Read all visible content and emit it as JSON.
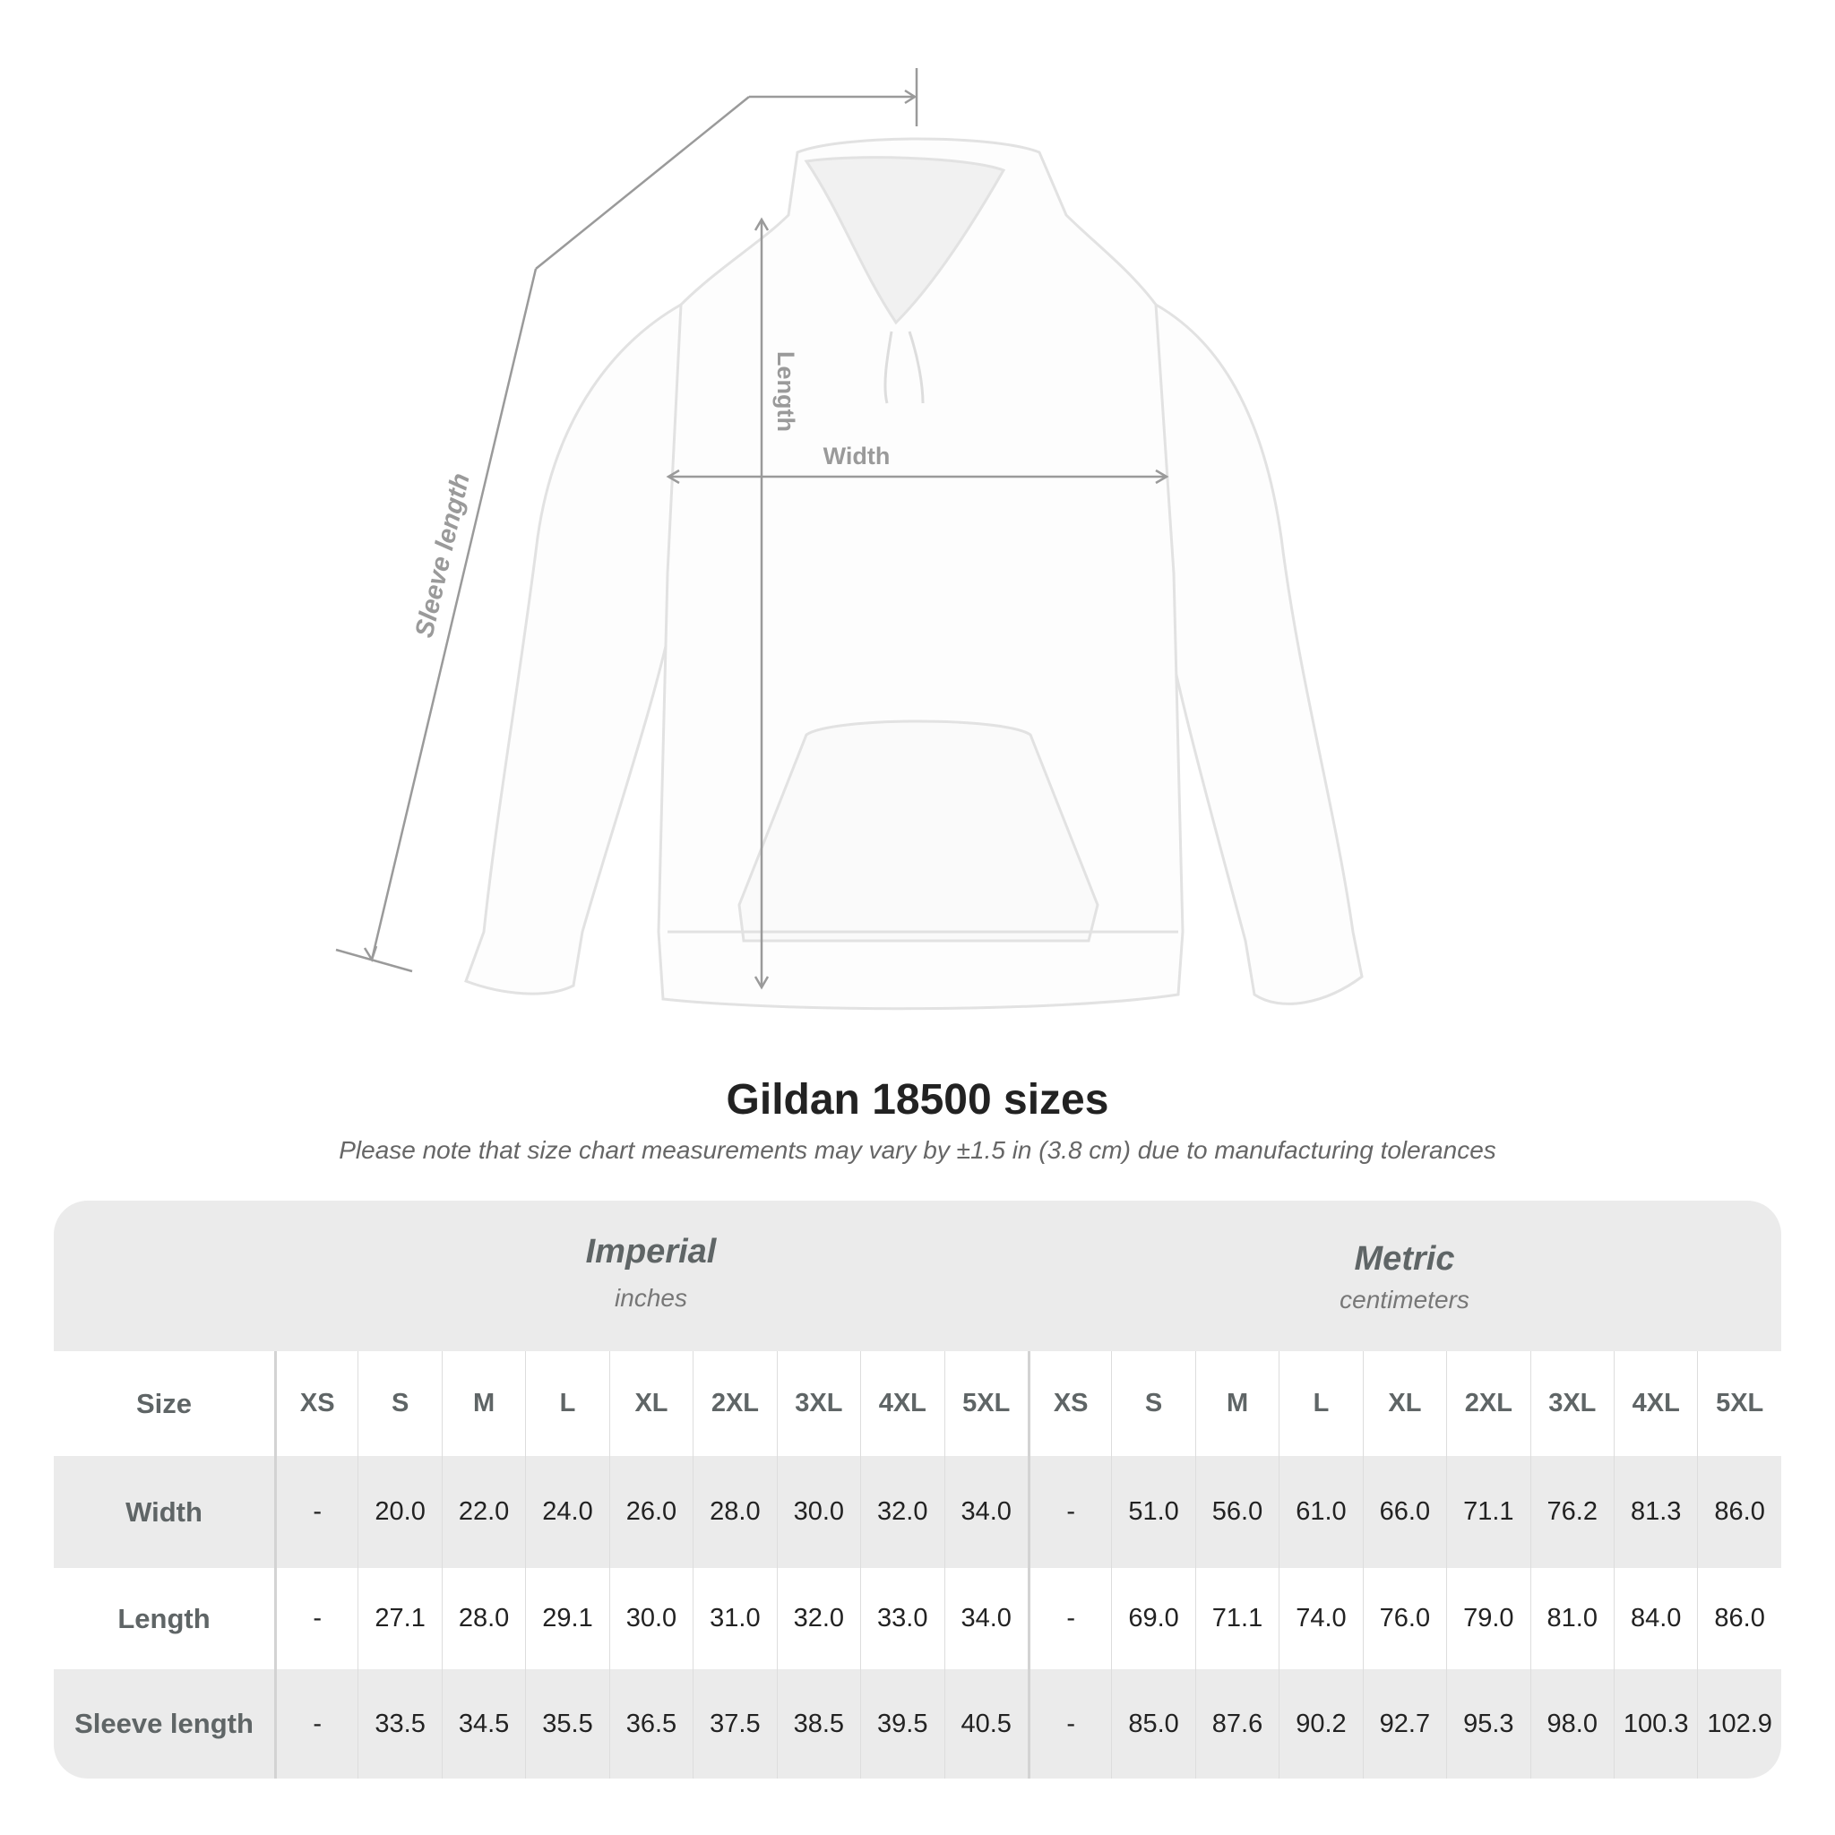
{
  "diagram": {
    "labels": {
      "length": "Length",
      "width": "Width",
      "sleeve": "Sleeve length"
    }
  },
  "header": {
    "title": "Gildan 18500 sizes",
    "subtitle": "Please note that size chart measurements may vary by ±1.5 in (3.8 cm) due to manufacturing tolerances"
  },
  "table": {
    "imperial": {
      "name": "Imperial",
      "unit": "inches"
    },
    "metric": {
      "name": "Metric",
      "unit": "centimeters"
    },
    "size_label": "Size",
    "sizes": [
      "XS",
      "S",
      "M",
      "L",
      "XL",
      "2XL",
      "3XL",
      "4XL",
      "5XL"
    ],
    "rows": [
      {
        "label": "Width",
        "imperial": [
          "-",
          "20.0",
          "22.0",
          "24.0",
          "26.0",
          "28.0",
          "30.0",
          "32.0",
          "34.0"
        ],
        "metric": [
          "-",
          "51.0",
          "56.0",
          "61.0",
          "66.0",
          "71.1",
          "76.2",
          "81.3",
          "86.0"
        ]
      },
      {
        "label": "Length",
        "imperial": [
          "-",
          "27.1",
          "28.0",
          "29.1",
          "30.0",
          "31.0",
          "32.0",
          "33.0",
          "34.0"
        ],
        "metric": [
          "-",
          "69.0",
          "71.1",
          "74.0",
          "76.0",
          "79.0",
          "81.0",
          "84.0",
          "86.0"
        ]
      },
      {
        "label": "Sleeve length",
        "imperial": [
          "-",
          "33.5",
          "34.5",
          "35.5",
          "36.5",
          "37.5",
          "38.5",
          "39.5",
          "40.5"
        ],
        "metric": [
          "-",
          "85.0",
          "87.6",
          "90.2",
          "92.7",
          "95.3",
          "98.0",
          "100.3",
          "102.9"
        ]
      }
    ]
  },
  "colors": {
    "band": "#ebebeb",
    "header_text": "#5f6566",
    "dimension_lines": "#9a9a9a"
  }
}
